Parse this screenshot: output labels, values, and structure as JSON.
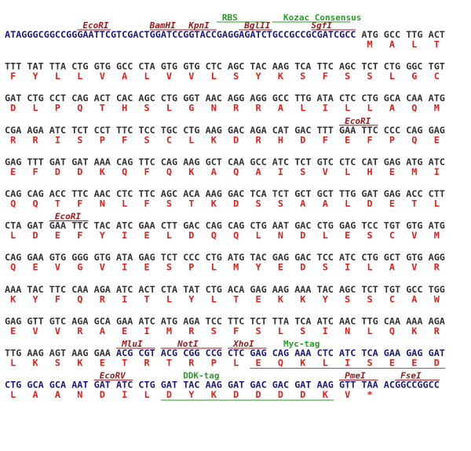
{
  "colors": {
    "insert": "#333333",
    "vector": "#1a1a80",
    "aa": "#e0201c",
    "site": "#a01818",
    "tag": "#2a9a2a"
  },
  "rows": [
    {
      "prefix": "ATAGGGCGGCCGGGAATTCGTCGACTGGATCCGGTACCGAGGAGATCTGCCGCCGCGATCGCC",
      "codons": [
        "ATG",
        "GCC",
        "TTG",
        "ACT"
      ],
      "aa": [
        "M",
        "A",
        "L",
        "T"
      ],
      "sites": [
        "EcoRI",
        "BamHI",
        "KpnI",
        "BglII",
        "SgfI"
      ],
      "tags": [
        "RBS",
        "Kozac Consensus"
      ]
    },
    {
      "codons": [
        "TTT",
        "TAT",
        "TTA",
        "CTG",
        "GTG",
        "GCC",
        "CTA",
        "GTG",
        "GTG",
        "CTC",
        "AGC",
        "TAC",
        "AAG",
        "TCA",
        "TTC",
        "AGC",
        "TCT",
        "CTG",
        "GGC",
        "TGT"
      ],
      "aa": [
        "F",
        "Y",
        "L",
        "L",
        "V",
        "A",
        "L",
        "V",
        "V",
        "L",
        "S",
        "Y",
        "K",
        "S",
        "F",
        "S",
        "S",
        "L",
        "G",
        "C"
      ]
    },
    {
      "codons": [
        "GAT",
        "CTG",
        "CCT",
        "CAG",
        "ACT",
        "CAC",
        "AGC",
        "CTG",
        "GGT",
        "AAC",
        "AGG",
        "AGG",
        "GCC",
        "TTG",
        "ATA",
        "CTC",
        "CTG",
        "GCA",
        "CAA",
        "ATG"
      ],
      "aa": [
        "D",
        "L",
        "P",
        "Q",
        "T",
        "H",
        "S",
        "L",
        "G",
        "N",
        "R",
        "R",
        "A",
        "L",
        "I",
        "L",
        "L",
        "A",
        "Q",
        "M"
      ]
    },
    {
      "codons": [
        "CGA",
        "AGA",
        "ATC",
        "TCT",
        "CCT",
        "TTC",
        "TCC",
        "TGC",
        "CTG",
        "AAG",
        "GAC",
        "AGA",
        "CAT",
        "GAC",
        "TTT",
        "GAA",
        "TTC",
        "CCC",
        "CAG",
        "GAG"
      ],
      "aa": [
        "R",
        "R",
        "I",
        "S",
        "P",
        "F",
        "S",
        "C",
        "L",
        "K",
        "D",
        "R",
        "H",
        "D",
        "F",
        "E",
        "F",
        "P",
        "Q",
        "E"
      ],
      "sites": [
        "EcoRI"
      ]
    },
    {
      "codons": [
        "GAG",
        "TTT",
        "GAT",
        "GAT",
        "AAA",
        "CAG",
        "TTC",
        "CAG",
        "AAG",
        "GCT",
        "CAA",
        "GCC",
        "ATC",
        "TCT",
        "GTC",
        "CTC",
        "CAT",
        "GAG",
        "ATG",
        "ATC"
      ],
      "aa": [
        "E",
        "F",
        "D",
        "D",
        "K",
        "Q",
        "F",
        "Q",
        "K",
        "A",
        "Q",
        "A",
        "I",
        "S",
        "V",
        "L",
        "H",
        "E",
        "M",
        "I"
      ]
    },
    {
      "codons": [
        "CAG",
        "CAG",
        "ACC",
        "TTC",
        "AAC",
        "CTC",
        "TTC",
        "AGC",
        "ACA",
        "AAG",
        "GAC",
        "TCA",
        "TCT",
        "GCT",
        "GCT",
        "TTG",
        "GAT",
        "GAG",
        "ACC",
        "CTT"
      ],
      "aa": [
        "Q",
        "Q",
        "T",
        "F",
        "N",
        "L",
        "F",
        "S",
        "T",
        "K",
        "D",
        "S",
        "S",
        "A",
        "A",
        "L",
        "D",
        "E",
        "T",
        "L"
      ]
    },
    {
      "codons": [
        "CTA",
        "GAT",
        "GAA",
        "TTC",
        "TAC",
        "ATC",
        "GAA",
        "CTT",
        "GAC",
        "CAG",
        "CAG",
        "CTG",
        "AAT",
        "GAC",
        "CTG",
        "GAG",
        "TCC",
        "TGT",
        "GTG",
        "ATG"
      ],
      "aa": [
        "L",
        "D",
        "E",
        "F",
        "Y",
        "I",
        "E",
        "L",
        "D",
        "Q",
        "Q",
        "L",
        "N",
        "D",
        "L",
        "E",
        "S",
        "C",
        "V",
        "M"
      ],
      "sites": [
        "EcoRI"
      ]
    },
    {
      "codons": [
        "CAG",
        "GAA",
        "GTG",
        "GGG",
        "GTG",
        "ATA",
        "GAG",
        "TCT",
        "CCC",
        "CTG",
        "ATG",
        "TAC",
        "GAG",
        "GAC",
        "TCC",
        "ATC",
        "CTG",
        "GCT",
        "GTG",
        "AGG"
      ],
      "aa": [
        "Q",
        "E",
        "V",
        "G",
        "V",
        "I",
        "E",
        "S",
        "P",
        "L",
        "M",
        "Y",
        "E",
        "D",
        "S",
        "I",
        "L",
        "A",
        "V",
        "R"
      ]
    },
    {
      "codons": [
        "AAA",
        "TAC",
        "TTC",
        "CAA",
        "AGA",
        "ATC",
        "ACT",
        "CTA",
        "TAT",
        "CTG",
        "ACA",
        "GAG",
        "AAG",
        "AAA",
        "TAC",
        "AGC",
        "TCT",
        "TGT",
        "GCC",
        "TGG"
      ],
      "aa": [
        "K",
        "Y",
        "F",
        "Q",
        "R",
        "I",
        "T",
        "L",
        "Y",
        "L",
        "T",
        "E",
        "K",
        "K",
        "Y",
        "S",
        "S",
        "C",
        "A",
        "W"
      ]
    },
    {
      "codons": [
        "GAG",
        "GTT",
        "GTC",
        "AGA",
        "GCA",
        "GAA",
        "ATC",
        "ATG",
        "AGA",
        "TCC",
        "TTC",
        "TCT",
        "TTA",
        "TCA",
        "ATC",
        "AAC",
        "TTG",
        "CAA",
        "AAA",
        "AGA"
      ],
      "aa": [
        "E",
        "V",
        "V",
        "R",
        "A",
        "E",
        "I",
        "M",
        "R",
        "S",
        "F",
        "S",
        "L",
        "S",
        "I",
        "N",
        "L",
        "Q",
        "K",
        "R"
      ]
    },
    {
      "codons": [
        "TTG",
        "AAG",
        "AGT",
        "AAG",
        "GAA"
      ],
      "aa": [
        "L",
        "K",
        "S",
        "K",
        "E"
      ],
      "vector_codons": [
        "ACG",
        "CGT",
        "ACG",
        "CGG",
        "CCG",
        "CTC",
        "GAG",
        "CAG",
        "AAA",
        "CTC",
        "ATC",
        "TCA",
        "GAA",
        "GAG",
        "GAT"
      ],
      "vector_aa": [
        "T",
        "R",
        "T",
        "R",
        "P",
        "L",
        "E",
        "Q",
        "K",
        "L",
        "I",
        "S",
        "E",
        "E",
        "D"
      ],
      "sites": [
        "MluI",
        "NotI",
        "XhoI"
      ],
      "tags": [
        "Myc-tag"
      ]
    },
    {
      "vector_codons": [
        "CTG",
        "GCA",
        "GCA",
        "AAT",
        "GAT",
        "ATC",
        "CTG",
        "GAT",
        "TAC",
        "AAG",
        "GAT",
        "GAC",
        "GAC",
        "GAT",
        "AAG",
        "GTT",
        "TAA"
      ],
      "vector_aa": [
        "L",
        "A",
        "A",
        "N",
        "D",
        "I",
        "L",
        "D",
        "Y",
        "K",
        "D",
        "D",
        "D",
        "D",
        "K",
        "V",
        "*"
      ],
      "suffix": "ACGGCCGGCC",
      "sites": [
        "EcoRV",
        "PmeI",
        "FseI"
      ],
      "tags": [
        "DDK-tag"
      ]
    }
  ]
}
